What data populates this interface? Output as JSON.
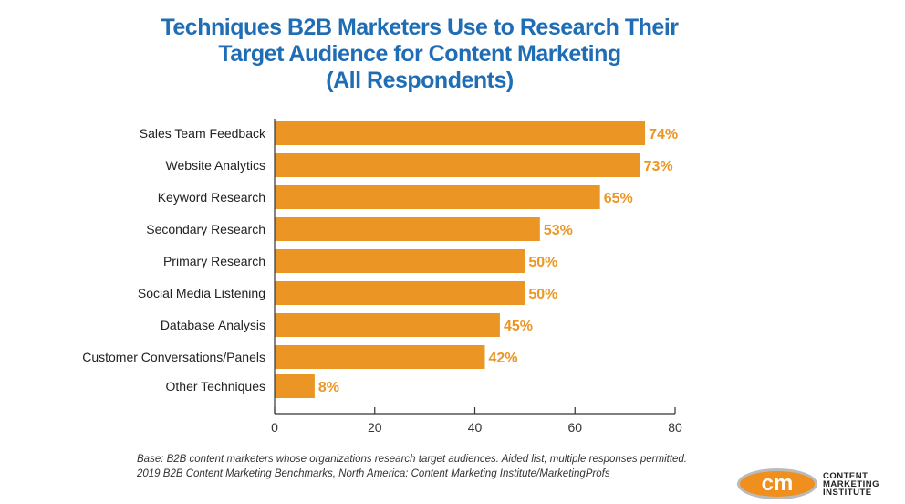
{
  "chart_data": {
    "type": "bar",
    "orientation": "horizontal",
    "title": [
      "Techniques B2B Marketers Use to Research Their",
      "Target Audience for Content Marketing",
      "(All Respondents)"
    ],
    "categories": [
      "Sales Team Feedback",
      "Website Analytics",
      "Keyword Research",
      "Secondary Research",
      "Primary Research",
      "Social Media Listening",
      "Database Analysis",
      "Customer Conversations/Panels",
      "Other Techniques"
    ],
    "values": [
      74,
      73,
      65,
      53,
      50,
      50,
      45,
      42,
      8
    ],
    "data_labels": [
      "74%",
      "73%",
      "65%",
      "53%",
      "50%",
      "50%",
      "45%",
      "42%",
      "8%"
    ],
    "xlim": [
      0,
      80
    ],
    "xticks": [
      "0",
      "20",
      "40",
      "60",
      "80"
    ],
    "grid": false,
    "colors": {
      "bar": "#eb9624",
      "label": "#eb9624",
      "title": "#1f6db5"
    }
  },
  "footnotes": [
    "Base: B2B content marketers whose organizations research target audiences. Aided list; multiple responses permitted.",
    "2019 B2B Content Marketing Benchmarks, North America: Content Marketing Institute/MarketingProfs"
  ],
  "logo": {
    "mark": "cm",
    "text": [
      "CONTENT",
      "MARKETING",
      "INSTITUTE"
    ]
  }
}
